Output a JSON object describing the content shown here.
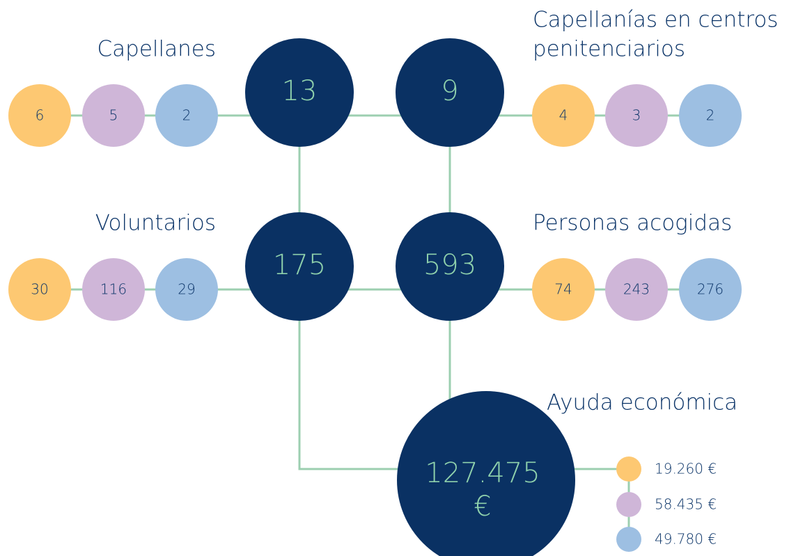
{
  "groups": [
    {
      "title": [
        "Capellanes"
      ],
      "total": "13",
      "breakdown": [
        "6",
        "5",
        "2"
      ]
    },
    {
      "title": [
        "Capellanías en centros",
        "penitenciarios"
      ],
      "total": "9",
      "breakdown": [
        "4",
        "3",
        "2"
      ]
    },
    {
      "title": [
        "Voluntarios"
      ],
      "total": "175",
      "breakdown": [
        "30",
        "116",
        "29"
      ]
    },
    {
      "title": [
        "Personas acogidas"
      ],
      "total": "593",
      "breakdown": [
        "74",
        "243",
        "276"
      ]
    }
  ],
  "aid": {
    "title": "Ayuda económica",
    "total": [
      "127.475",
      "€"
    ],
    "breakdown": [
      "19.260 €",
      "58.435 €",
      "49.780 €"
    ]
  }
}
